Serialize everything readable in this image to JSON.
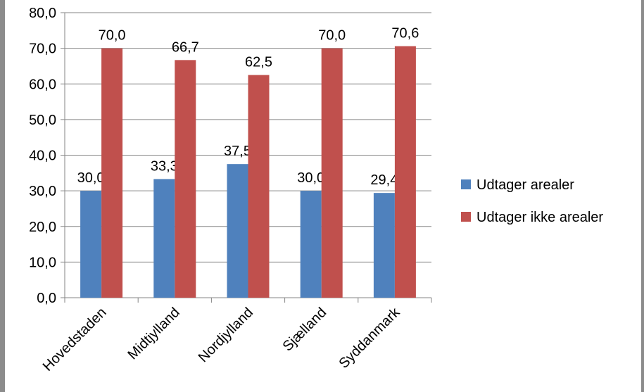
{
  "chart_data": {
    "type": "bar",
    "title": "",
    "xlabel": "",
    "ylabel": "",
    "categories": [
      "Hovedstaden",
      "Midtjylland",
      "Nordjylland",
      "Sjælland",
      "Syddanmark"
    ],
    "series": [
      {
        "name": "Udtager arealer",
        "values": [
          30.0,
          33.3,
          37.5,
          30.0,
          29.4
        ],
        "color": "#4f81bd"
      },
      {
        "name": "Udtager ikke arealer",
        "values": [
          70.0,
          66.7,
          62.5,
          70.0,
          70.6
        ],
        "color": "#c0504d"
      }
    ],
    "data_labels": [
      [
        "30,0",
        "33,3",
        "37,5",
        "30,0",
        "29,4"
      ],
      [
        "70,0",
        "66,7",
        "62,5",
        "70,0",
        "70,6"
      ]
    ],
    "ylim": [
      0,
      80
    ],
    "y_ticks": [
      0,
      10,
      20,
      30,
      40,
      50,
      60,
      70,
      80
    ],
    "y_tick_labels": [
      "0,0",
      "10,0",
      "20,0",
      "30,0",
      "40,0",
      "50,0",
      "60,0",
      "70,0",
      "80,0"
    ],
    "grid": true,
    "legend_position": "right",
    "colors": {
      "axis": "#868686",
      "grid": "#868686",
      "border": "#8c8c8c"
    }
  }
}
